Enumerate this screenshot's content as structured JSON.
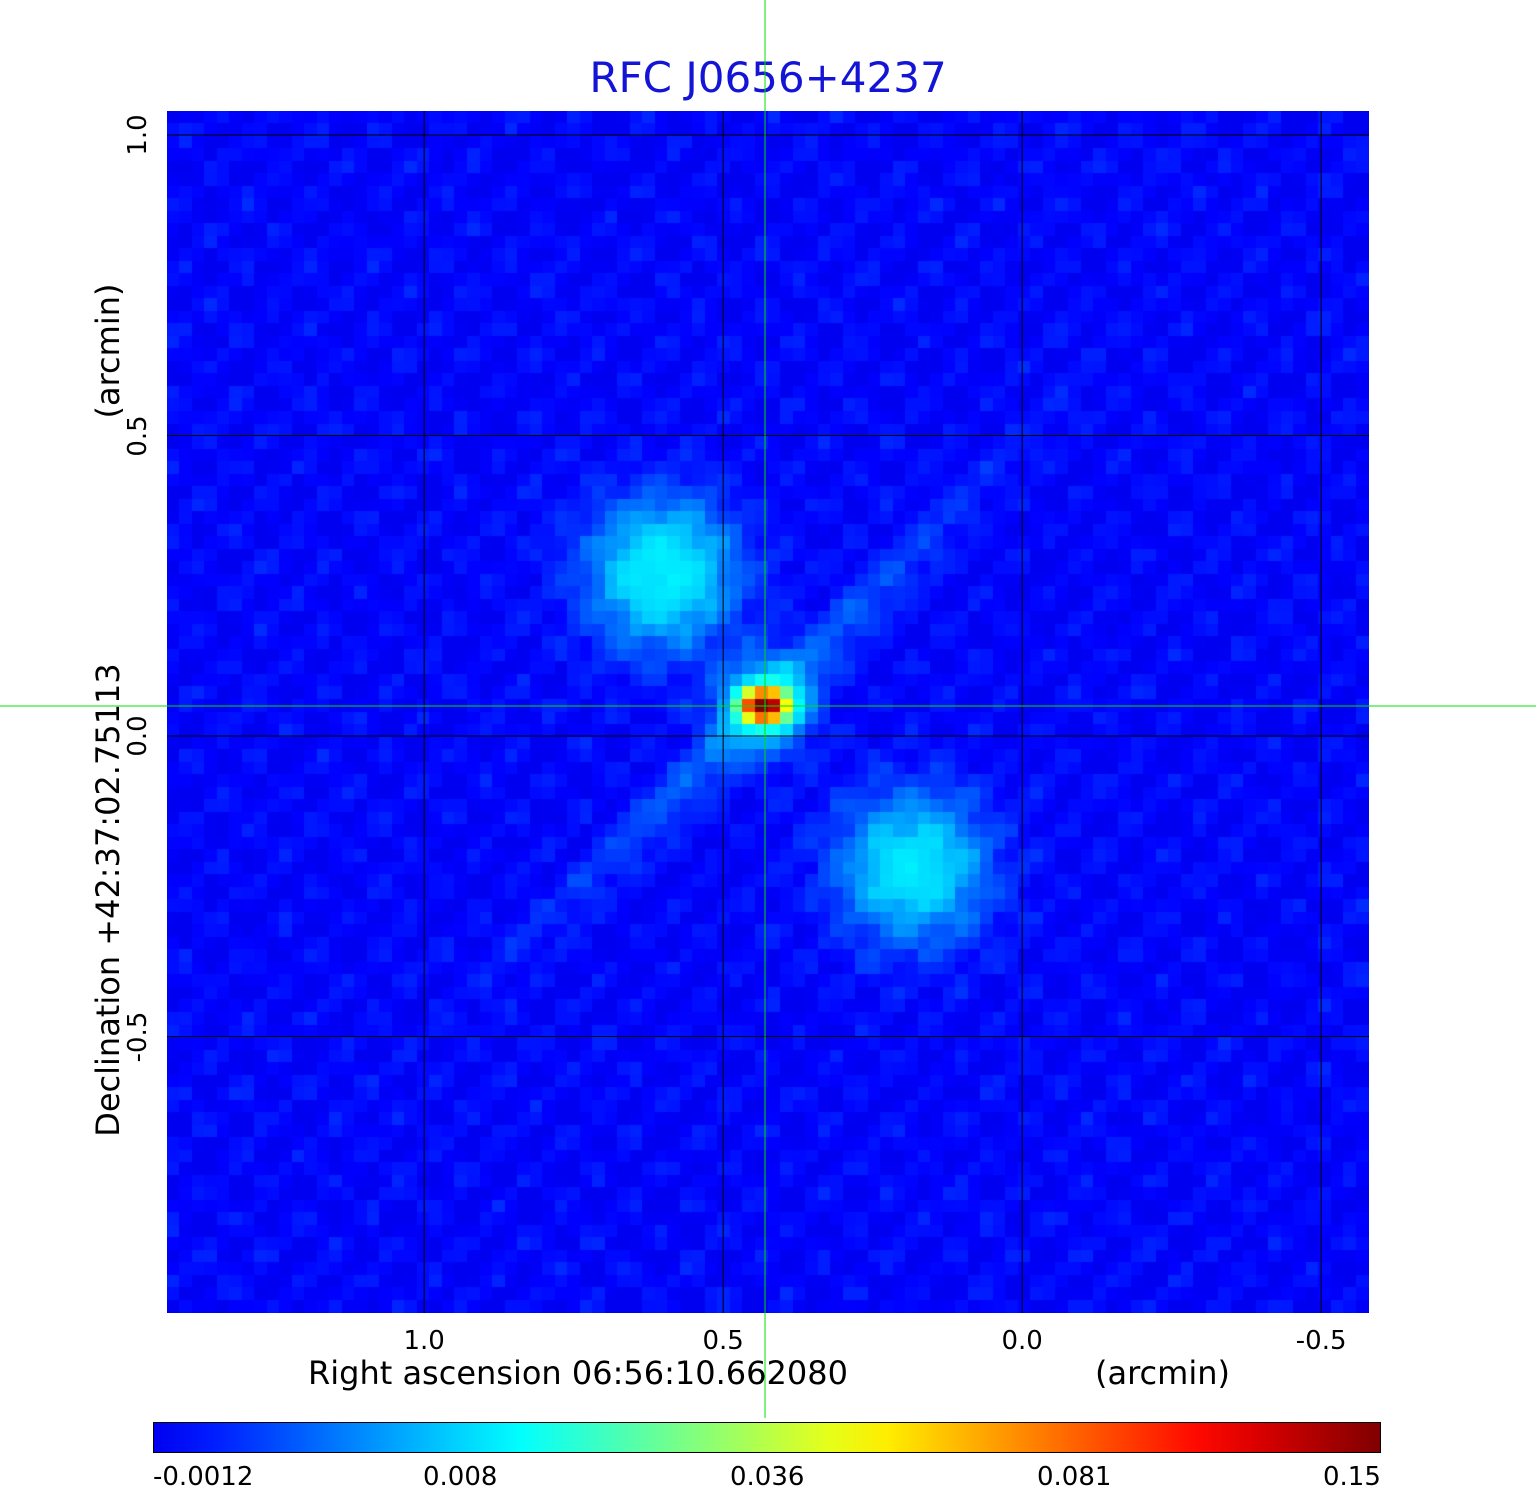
{
  "chart_data": {
    "type": "heatmap",
    "title": "RFC J0656+4237",
    "xlabel": "Right ascension  06:56:10.662080",
    "xunit": "(arcmin)",
    "ylabel": "Declination  +42:37:02.75113",
    "yunit": "(arcmin)",
    "x_ticks": [
      "1.0",
      "0.5",
      "0.0",
      "-0.5"
    ],
    "x_tick_values": [
      1.0,
      0.5,
      0.0,
      -0.5
    ],
    "y_ticks": [
      "1.0",
      "0.5",
      "0.0",
      "-0.5"
    ],
    "y_tick_values": [
      1.0,
      0.5,
      0.0,
      -0.5
    ],
    "xlim": [
      1.43,
      -0.58
    ],
    "ylim": [
      -0.96,
      1.04
    ],
    "grid": true,
    "crosshair": {
      "x": 0.43,
      "y": 0.05
    },
    "peak": {
      "x": 0.43,
      "y": 0.05,
      "value": 0.15
    },
    "diffuse_lobes": [
      {
        "x": 0.6,
        "y": 0.27,
        "value": 0.012
      },
      {
        "x": 0.18,
        "y": -0.22,
        "value": 0.011
      }
    ],
    "colorbar": {
      "colormap": "jet",
      "ticks": [
        "-0.0012",
        "0.008",
        "0.036",
        "0.081",
        "0.15"
      ],
      "values": [
        -0.0012,
        0.008,
        0.036,
        0.081,
        0.15
      ]
    },
    "colors": {
      "title": "#1414d6",
      "crosshair": "#00e000",
      "grid": "#000000",
      "background": "#0a1ef0"
    }
  }
}
